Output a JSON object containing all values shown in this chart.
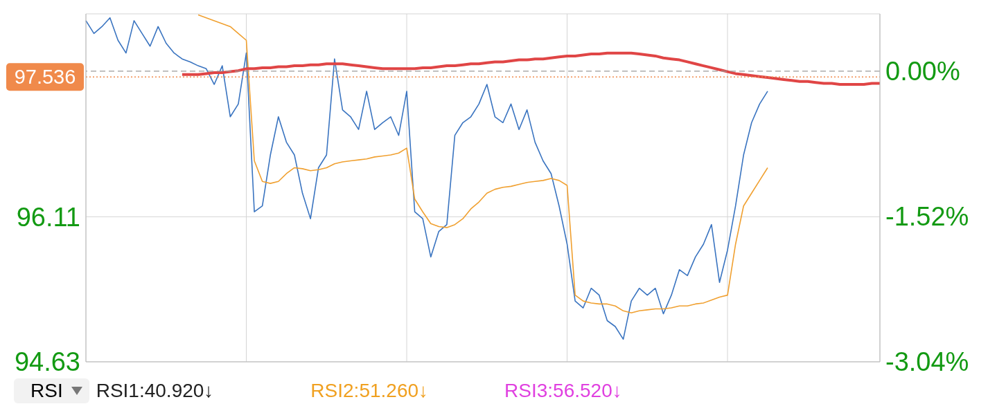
{
  "chart_data": {
    "type": "line",
    "categories": [
      null,
      null,
      null,
      null,
      null,
      null,
      null,
      null,
      null,
      null,
      null,
      null,
      null,
      null,
      null,
      null,
      null,
      null,
      null,
      null,
      null,
      null,
      null,
      null,
      null,
      null,
      null,
      null,
      null,
      null,
      null,
      null,
      null,
      null,
      null,
      null,
      null,
      null,
      null,
      null,
      null,
      null,
      null,
      null,
      null,
      null,
      null,
      null,
      null,
      null,
      null,
      null,
      null,
      null,
      null,
      null,
      null,
      null,
      null,
      null,
      null,
      null,
      null,
      null,
      null,
      null,
      null,
      null,
      null,
      null,
      null,
      null,
      null,
      null,
      null,
      null,
      null,
      null,
      null,
      null,
      null,
      null,
      null,
      null,
      null,
      null,
      null,
      null,
      null,
      null,
      null,
      null,
      null,
      null,
      null,
      null,
      null,
      null,
      null,
      null
    ],
    "ylim": [
      94.63,
      98.18
    ],
    "yticks": [
      96.11,
      94.63
    ],
    "y2lim": [
      -3.04,
      0.6
    ],
    "y2ticks": [
      {
        "value": 0,
        "label": "0.00%"
      },
      {
        "value": -1.52,
        "label": "-1.52%"
      },
      {
        "value": -3.04,
        "label": "-3.04%"
      }
    ],
    "grid": true,
    "series": [
      {
        "color": "#3a74c0",
        "values": [
          98.11,
          97.98,
          98.05,
          98.14,
          97.91,
          97.78,
          98.11,
          97.98,
          97.85,
          98.05,
          97.88,
          97.78,
          97.72,
          97.69,
          97.65,
          97.62,
          97.46,
          97.65,
          97.13,
          97.26,
          97.78,
          96.16,
          96.22,
          96.74,
          97.13,
          96.87,
          96.74,
          96.35,
          96.09,
          96.61,
          96.74,
          97.72,
          97.2,
          97.13,
          97.0,
          97.39,
          97.0,
          97.07,
          97.13,
          96.94,
          97.39,
          96.16,
          96.09,
          95.7,
          95.96,
          96.03,
          96.94,
          97.07,
          97.13,
          97.26,
          97.46,
          97.13,
          97.07,
          97.26,
          97.0,
          97.2,
          96.87,
          96.68,
          96.55,
          96.22,
          95.83,
          95.25,
          95.18,
          95.38,
          95.31,
          95.05,
          94.99,
          94.86,
          95.25,
          95.38,
          95.31,
          95.38,
          95.12,
          95.31,
          95.57,
          95.51,
          95.7,
          95.83,
          96.03,
          95.44,
          95.77,
          96.22,
          96.74,
          97.07,
          97.26,
          97.39,
          null,
          null,
          null,
          null,
          null,
          null,
          null,
          null,
          null,
          null,
          null,
          null,
          null,
          null
        ]
      },
      {
        "color": "#f0a030",
        "values": [
          null,
          null,
          null,
          null,
          null,
          null,
          null,
          null,
          null,
          null,
          null,
          null,
          null,
          null,
          98.17,
          98.14,
          98.11,
          98.08,
          98.05,
          97.98,
          97.91,
          96.68,
          96.47,
          96.45,
          96.47,
          96.55,
          96.61,
          96.6,
          96.58,
          96.59,
          96.61,
          96.65,
          96.67,
          96.68,
          96.69,
          96.7,
          96.72,
          96.73,
          96.74,
          96.76,
          96.81,
          96.29,
          96.16,
          96.04,
          96.01,
          96.0,
          96.03,
          96.09,
          96.19,
          96.26,
          96.35,
          96.39,
          96.41,
          96.42,
          96.44,
          96.46,
          96.47,
          96.48,
          96.5,
          96.48,
          96.43,
          95.31,
          95.25,
          95.23,
          95.22,
          95.22,
          95.2,
          95.15,
          95.13,
          95.15,
          95.16,
          95.17,
          95.17,
          95.18,
          95.2,
          95.2,
          95.22,
          95.23,
          95.26,
          95.29,
          95.31,
          95.83,
          96.22,
          96.35,
          96.48,
          96.61,
          null,
          null,
          null,
          null,
          null,
          null,
          null,
          null,
          null,
          null,
          null,
          null,
          null,
          null
        ]
      },
      {
        "color": "#e04545",
        "values": [
          null,
          null,
          null,
          null,
          null,
          null,
          null,
          null,
          null,
          null,
          null,
          null,
          97.56,
          97.56,
          97.56,
          97.57,
          97.58,
          97.58,
          97.59,
          97.6,
          97.62,
          97.62,
          97.63,
          97.63,
          97.64,
          97.64,
          97.65,
          97.65,
          97.66,
          97.66,
          97.67,
          97.67,
          97.67,
          97.66,
          97.65,
          97.64,
          97.63,
          97.62,
          97.62,
          97.62,
          97.62,
          97.62,
          97.63,
          97.63,
          97.64,
          97.65,
          97.65,
          97.66,
          97.67,
          97.67,
          97.68,
          97.69,
          97.69,
          97.7,
          97.71,
          97.71,
          97.72,
          97.72,
          97.73,
          97.74,
          97.75,
          97.75,
          97.76,
          97.77,
          97.77,
          97.78,
          97.78,
          97.78,
          97.78,
          97.77,
          97.76,
          97.75,
          97.73,
          97.72,
          97.71,
          97.69,
          97.67,
          97.65,
          97.63,
          97.61,
          97.59,
          97.57,
          97.56,
          97.55,
          97.54,
          97.53,
          97.52,
          97.51,
          97.5,
          97.49,
          97.49,
          97.48,
          97.47,
          97.47,
          97.46,
          97.46,
          97.46,
          97.46,
          97.47,
          97.47
        ]
      }
    ],
    "ref_lines": [
      {
        "axis": "y2",
        "value": 0,
        "color": "#999999",
        "line_style": "dashed"
      },
      {
        "axis": "y",
        "value": 97.536,
        "label": "97.536",
        "color": "#f08a4b",
        "line_style": "dotted"
      }
    ],
    "annotations": [
      "RSI",
      "RSI1:40.920↓",
      "RSI2:51.260↓",
      "RSI3:56.520↓"
    ]
  }
}
